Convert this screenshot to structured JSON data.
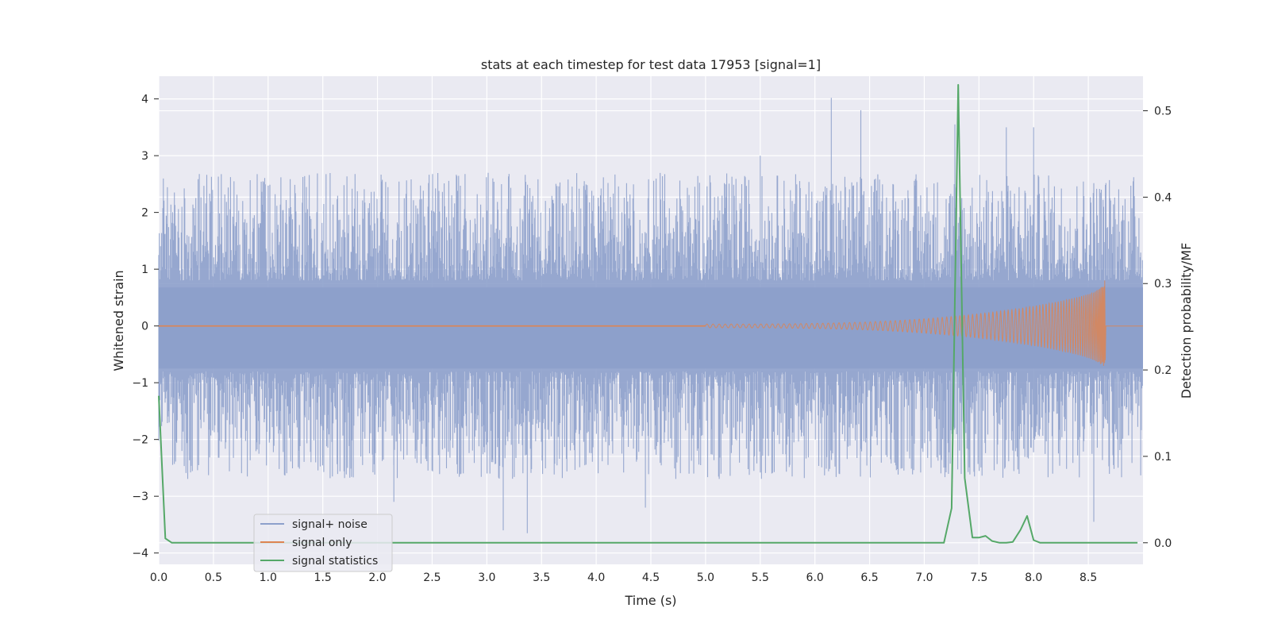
{
  "chart_data": {
    "type": "line",
    "title": "stats at each timestep for test data 17953 [signal=1]",
    "xlabel": "Time (s)",
    "ylabel": "Whitened strain",
    "ylabel_right": "Detection probability/MF",
    "xlim": [
      0.0,
      9.0
    ],
    "ylim": [
      -4.2,
      4.4
    ],
    "ylim_right": [
      -0.025,
      0.54
    ],
    "xticks": [
      "0.0",
      "0.5",
      "1.0",
      "1.5",
      "2.0",
      "2.5",
      "3.0",
      "3.5",
      "4.0",
      "4.5",
      "5.0",
      "5.5",
      "6.0",
      "6.5",
      "7.0",
      "7.5",
      "8.0",
      "8.5"
    ],
    "yticks": [
      "−4",
      "−3",
      "−2",
      "−1",
      "0",
      "1",
      "2",
      "3",
      "4"
    ],
    "yticks_right": [
      "0.0",
      "0.1",
      "0.2",
      "0.3",
      "0.4",
      "0.5"
    ],
    "grid": true,
    "legend_position": "lower-left",
    "colors": {
      "background": "#eaeaf2",
      "noise": "#8da0cb",
      "signal": "#dd8452",
      "stats": "#55a868"
    },
    "series": [
      {
        "name": "signal+ noise",
        "axis": "left",
        "description_values": {
          "band_min": -0.75,
          "band_max": 0.68,
          "typical_upper_spikes": [
            1.5,
            2.6
          ],
          "typical_lower_spikes": [
            -1.5,
            -2.6
          ],
          "peaks": [
            {
              "x": 6.15,
              "y": 4.02
            },
            {
              "x": 6.42,
              "y": 3.8
            },
            {
              "x": 7.28,
              "y": 3.55
            },
            {
              "x": 7.75,
              "y": 3.5
            },
            {
              "x": 8.0,
              "y": 3.5
            },
            {
              "x": 5.5,
              "y": 3.0
            },
            {
              "x": 3.15,
              "y": -3.6
            },
            {
              "x": 3.37,
              "y": -3.65
            },
            {
              "x": 4.45,
              "y": -3.2
            },
            {
              "x": 8.55,
              "y": -3.45
            },
            {
              "x": 2.15,
              "y": -3.1
            }
          ]
        }
      },
      {
        "name": "signal only",
        "axis": "left",
        "description_values": {
          "chirp_start": 5.0,
          "chirp_end": 8.65,
          "max_amplitude": 0.8,
          "min_amplitude": -0.6
        }
      },
      {
        "name": "signal statistics",
        "axis": "right",
        "x": [
          0.0,
          0.06,
          0.12,
          7.18,
          7.25,
          7.31,
          7.37,
          7.44,
          7.5,
          7.56,
          7.62,
          7.69,
          7.75,
          7.81,
          7.88,
          7.94,
          8.0,
          8.06,
          8.95
        ],
        "values": [
          0.17,
          0.005,
          0.0,
          0.0,
          0.04,
          0.53,
          0.075,
          0.006,
          0.006,
          0.008,
          0.002,
          0.0,
          0.0,
          0.001,
          0.015,
          0.031,
          0.003,
          0.0,
          0.0
        ]
      }
    ]
  }
}
